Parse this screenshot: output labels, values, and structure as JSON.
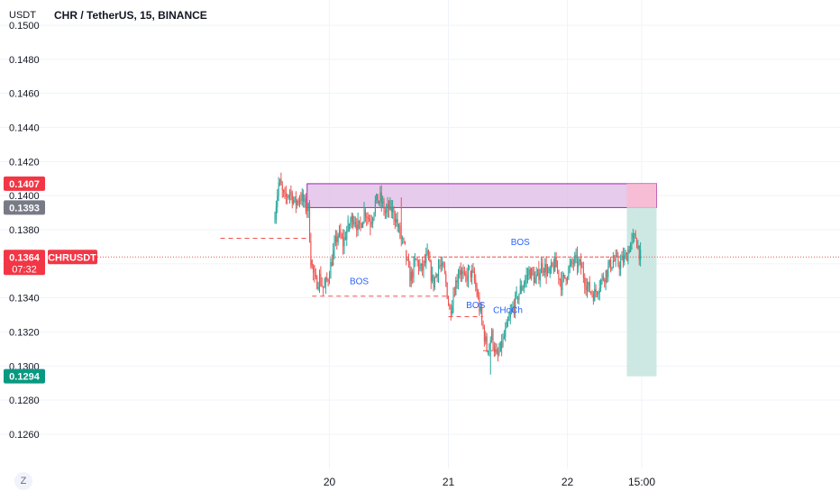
{
  "header": {
    "currency": "USDT",
    "title": "CHR / TetherUS, 15, BINANCE"
  },
  "footer": {
    "timezone_button": "Z"
  },
  "colors": {
    "up": "#26a69a",
    "down": "#ef5350",
    "grid": "#f0f3fa",
    "axis_text": "#131722",
    "supply_zone_fill": "#e1bee7",
    "supply_zone_border": "#9c27b0",
    "stop_zone_fill": "#f8bbd0",
    "target_zone_fill": "#c8e6df",
    "annotation_text": "#2962ff",
    "price_line": "#ef5350"
  },
  "chart_data": {
    "type": "candlestick",
    "symbol": "CHRUSDT",
    "ylim": [
      0.1245,
      0.1503
    ],
    "y_ticks": [
      "0.1260",
      "0.1280",
      "0.1300",
      "0.1320",
      "0.1340",
      "0.1360",
      "0.1380",
      "0.1400",
      "0.1420",
      "0.1440",
      "0.1460",
      "0.1480",
      "0.1500"
    ],
    "x_ticks": [
      {
        "label": "20",
        "t": 0
      },
      {
        "label": "21",
        "t": 96
      },
      {
        "label": "22",
        "t": 192
      },
      {
        "label": "15:00",
        "t": 252
      }
    ],
    "x_range": [
      -44,
      430
    ],
    "price_labels": [
      {
        "value": 0.1407,
        "text": "0.1407",
        "color": "#f23645"
      },
      {
        "value": 0.1393,
        "text": "0.1393",
        "color": "#787b86"
      },
      {
        "value": 0.1364,
        "text": "0.1364",
        "sub": "07:32",
        "color": "#f23645",
        "tag": "CHRUSDT"
      },
      {
        "value": 0.1294,
        "text": "0.1294",
        "color": "#089981"
      }
    ],
    "last_price": 0.1364,
    "series": [
      {
        "t0": -44,
        "t1": -18,
        "start": 0.1385,
        "anchors": [
          0.1385,
          0.1409,
          0.1397,
          0.1403,
          0.1395,
          0.14,
          0.1393
        ]
      },
      {
        "t0": -18,
        "t1": -14,
        "start": 0.1393,
        "anchors": [
          0.1393,
          0.1392,
          0.1362
        ]
      },
      {
        "t0": -14,
        "t1": 0,
        "start": 0.1362,
        "anchors": [
          0.1362,
          0.1348,
          0.1352,
          0.1345,
          0.1352
        ]
      },
      {
        "t0": 0,
        "t1": 16,
        "start": 0.1352,
        "anchors": [
          0.1352,
          0.1366,
          0.1378,
          0.1372,
          0.1382
        ]
      },
      {
        "t0": 16,
        "t1": 34,
        "start": 0.1382,
        "anchors": [
          0.1382,
          0.1388,
          0.138,
          0.1392,
          0.1384
        ]
      },
      {
        "t0": 34,
        "t1": 50,
        "start": 0.1384,
        "anchors": [
          0.1384,
          0.1396,
          0.1398,
          0.139,
          0.1393
        ]
      },
      {
        "t0": 50,
        "t1": 62,
        "start": 0.1393,
        "anchors": [
          0.1393,
          0.1388,
          0.1376,
          0.1368
        ]
      },
      {
        "t0": 62,
        "t1": 66,
        "start": 0.1368,
        "anchors": [
          0.1368,
          0.135
        ]
      },
      {
        "t0": 66,
        "t1": 94,
        "start": 0.135,
        "anchors": [
          0.135,
          0.1362,
          0.1356,
          0.1364,
          0.1348,
          0.136,
          0.1354
        ]
      },
      {
        "t0": 94,
        "t1": 98,
        "start": 0.1354,
        "anchors": [
          0.1354,
          0.1332
        ]
      },
      {
        "t0": 98,
        "t1": 114,
        "start": 0.1332,
        "anchors": [
          0.1332,
          0.1346,
          0.1358,
          0.135,
          0.1356
        ]
      },
      {
        "t0": 114,
        "t1": 124,
        "start": 0.1356,
        "anchors": [
          0.1356,
          0.1352,
          0.134,
          0.1326
        ]
      },
      {
        "t0": 124,
        "t1": 140,
        "start": 0.1326,
        "anchors": [
          0.1326,
          0.131,
          0.1318,
          0.1304,
          0.1312
        ]
      },
      {
        "t0": 140,
        "t1": 152,
        "start": 0.1312,
        "anchors": [
          0.1312,
          0.1322,
          0.1332,
          0.134
        ]
      },
      {
        "t0": 152,
        "t1": 178,
        "start": 0.134,
        "anchors": [
          0.134,
          0.1348,
          0.1356,
          0.135,
          0.136,
          0.1354
        ]
      },
      {
        "t0": 178,
        "t1": 204,
        "start": 0.1354,
        "anchors": [
          0.1354,
          0.136,
          0.1348,
          0.1356,
          0.1362,
          0.1358
        ]
      },
      {
        "t0": 204,
        "t1": 220,
        "start": 0.1358,
        "anchors": [
          0.1358,
          0.1346,
          0.1342,
          0.135
        ]
      },
      {
        "t0": 220,
        "t1": 240,
        "start": 0.135,
        "anchors": [
          0.135,
          0.1356,
          0.1362,
          0.136,
          0.1364
        ]
      },
      {
        "t0": 240,
        "t1": 252,
        "start": 0.1364,
        "anchors": [
          0.1364,
          0.1372,
          0.1376,
          0.1364
        ]
      }
    ],
    "wick_events": [
      {
        "t": 130,
        "low": 0.1295
      },
      {
        "t": -40,
        "high": 0.1409
      },
      {
        "t": 58,
        "high": 0.1399
      },
      {
        "t": 246,
        "high": 0.1378
      }
    ],
    "zones": [
      {
        "name": "supply-zone",
        "t0": -18,
        "t1": 264,
        "top": 0.1407,
        "bottom": 0.1393
      },
      {
        "name": "stop-zone",
        "t0": 240,
        "t1": 264,
        "top": 0.1407,
        "bottom": 0.1393
      },
      {
        "name": "target-zone",
        "t0": 240,
        "t1": 264,
        "top": 0.1393,
        "bottom": 0.1294
      }
    ],
    "levels": [
      {
        "name": "level-1375",
        "t0": -88,
        "t1": -18,
        "price": 0.1375
      },
      {
        "name": "level-1341",
        "t0": -14,
        "t1": 96,
        "price": 0.1341
      },
      {
        "name": "level-1329",
        "t0": 96,
        "t1": 124,
        "price": 0.1329
      },
      {
        "name": "level-1309",
        "t0": 124,
        "t1": 132,
        "price": 0.1309
      },
      {
        "name": "level-1364",
        "t0": 62,
        "t1": 240,
        "price": 0.1364
      }
    ],
    "annotations": [
      {
        "text": "BOS",
        "t": 24,
        "price": 0.1348
      },
      {
        "text": "BOS",
        "t": 118,
        "price": 0.1334
      },
      {
        "text": "CHoCh",
        "t": 144,
        "price": 0.1331
      },
      {
        "text": "BOS",
        "t": 154,
        "price": 0.1371
      }
    ]
  }
}
